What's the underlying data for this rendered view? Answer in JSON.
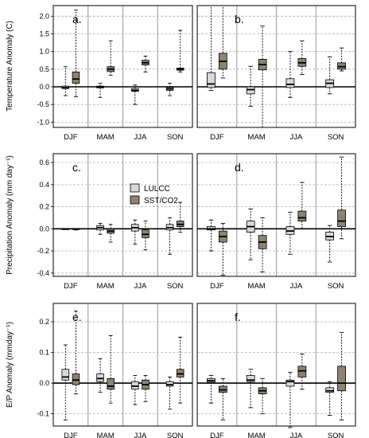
{
  "chart_data": {
    "type": "boxplot",
    "categories": [
      "DJF",
      "MAM",
      "JJA",
      "SON"
    ],
    "legend": [
      "LULCC",
      "SST/CO2"
    ],
    "colors": {
      "LULCC": "#d9d9d9",
      "SST/CO2": "#8c8373",
      "grid": "#b3b3b3",
      "sep": "#a6a6a6"
    },
    "rows": [
      {
        "ylabel": "Temperature Anomaly (C)",
        "ylim": [
          -1.15,
          2.3
        ],
        "ticks": [
          -1.0,
          -0.5,
          0.0,
          0.5,
          1.0,
          1.5,
          2.0
        ],
        "tick_labels": [
          "-1.0",
          "-0.5",
          "0.0",
          "0.5",
          "1.0",
          "1.5",
          "2.0"
        ]
      },
      {
        "ylabel": "Precipitation Anomaly (mm day⁻¹)",
        "ylim": [
          -0.43,
          0.68
        ],
        "ticks": [
          -0.4,
          -0.2,
          0.0,
          0.2,
          0.4,
          0.6
        ],
        "tick_labels": [
          "-0.4",
          "-0.2",
          "0.0",
          "0.2",
          "0.4",
          "0.6"
        ]
      },
      {
        "ylabel": "E/P Anomaly (mmday⁻¹)",
        "ylim": [
          -0.14,
          0.26
        ],
        "ticks": [
          -0.1,
          0.0,
          0.1,
          0.2
        ],
        "tick_labels": [
          "-0.1",
          "0.0",
          "0.1",
          "0.2"
        ]
      }
    ],
    "panels": [
      {
        "label": "a.",
        "row": 0,
        "col": 0,
        "series": [
          [
            [
              -0.25,
              -0.05,
              -0.02,
              0.02,
              0.57
            ],
            [
              -0.3,
              -0.03,
              -0.01,
              0.02,
              0.1
            ],
            [
              -0.5,
              -0.13,
              -0.1,
              -0.05,
              0.05
            ],
            [
              -0.25,
              -0.1,
              -0.06,
              -0.02,
              0.1
            ]
          ],
          [
            [
              -0.28,
              0.1,
              0.22,
              0.42,
              2.17
            ],
            [
              0.33,
              0.43,
              0.5,
              0.57,
              1.3
            ],
            [
              0.42,
              0.62,
              0.68,
              0.75,
              0.87
            ],
            [
              0.42,
              0.47,
              0.5,
              0.53,
              1.6
            ]
          ]
        ]
      },
      {
        "label": "b.",
        "row": 0,
        "col": 1,
        "series": [
          [
            [
              -0.1,
              -0.02,
              0.08,
              0.4,
              2.3
            ],
            [
              -0.55,
              -0.2,
              -0.08,
              0.0,
              0.58
            ],
            [
              -0.3,
              -0.02,
              0.07,
              0.23,
              1.0
            ],
            [
              -0.2,
              -0.02,
              0.1,
              0.2,
              0.85
            ]
          ],
          [
            [
              0.25,
              0.5,
              0.72,
              0.95,
              2.3
            ],
            [
              -1.15,
              0.48,
              0.63,
              0.78,
              1.72
            ],
            [
              0.35,
              0.58,
              0.68,
              0.8,
              1.3
            ],
            [
              0.45,
              0.5,
              0.57,
              0.68,
              1.1
            ]
          ]
        ]
      },
      {
        "label": "c.",
        "row": 1,
        "col": 0,
        "series": [
          [
            [
              0.0,
              0.0,
              0.0,
              0.0,
              0.0
            ],
            [
              -0.05,
              -0.01,
              0.01,
              0.03,
              0.05
            ],
            [
              -0.14,
              -0.02,
              0.01,
              0.04,
              0.08
            ],
            [
              -0.23,
              -0.01,
              0.01,
              0.04,
              0.1
            ]
          ],
          [
            [
              -0.01,
              -0.005,
              0.0,
              0.0,
              0.0
            ],
            [
              -0.12,
              -0.04,
              -0.02,
              0.0,
              0.04
            ],
            [
              -0.19,
              -0.08,
              -0.05,
              -0.01,
              0.07
            ],
            [
              -0.03,
              0.02,
              0.04,
              0.07,
              0.24
            ]
          ]
        ]
      },
      {
        "label": "d.",
        "row": 1,
        "col": 1,
        "series": [
          [
            [
              -0.2,
              -0.01,
              0.0,
              0.02,
              0.08
            ],
            [
              -0.28,
              -0.03,
              0.02,
              0.07,
              0.18
            ],
            [
              -0.23,
              -0.05,
              -0.02,
              0.02,
              0.15
            ],
            [
              -0.3,
              -0.1,
              -0.07,
              -0.03,
              0.03
            ]
          ],
          [
            [
              -0.42,
              -0.12,
              -0.07,
              -0.02,
              0.05
            ],
            [
              -0.39,
              -0.18,
              -0.12,
              -0.06,
              0.1
            ],
            [
              0.0,
              0.07,
              0.1,
              0.16,
              0.42
            ],
            [
              -0.09,
              0.02,
              0.07,
              0.17,
              0.65
            ]
          ]
        ]
      },
      {
        "label": "e.",
        "row": 2,
        "col": 0,
        "series": [
          [
            [
              -0.12,
              0.01,
              0.02,
              0.045,
              0.125
            ],
            [
              -0.03,
              0.005,
              0.015,
              0.03,
              0.08
            ],
            [
              -0.07,
              -0.02,
              -0.01,
              0.005,
              0.025
            ],
            [
              -0.085,
              -0.01,
              -0.005,
              0.005,
              0.02
            ]
          ],
          [
            [
              -0.035,
              -0.005,
              0.01,
              0.03,
              0.235
            ],
            [
              -0.065,
              -0.02,
              -0.01,
              0.015,
              0.155
            ],
            [
              -0.06,
              -0.02,
              -0.005,
              0.01,
              0.025
            ],
            [
              -0.065,
              0.02,
              0.03,
              0.045,
              0.15
            ]
          ]
        ]
      },
      {
        "label": "f.",
        "row": 2,
        "col": 1,
        "series": [
          [
            [
              -0.065,
              0.003,
              0.008,
              0.015,
              0.025
            ],
            [
              -0.08,
              0.005,
              0.01,
              0.025,
              0.045
            ],
            [
              -0.145,
              -0.01,
              0.005,
              0.01,
              0.035
            ],
            [
              -0.105,
              -0.03,
              -0.025,
              -0.015,
              0.005
            ]
          ],
          [
            [
              -0.12,
              -0.03,
              -0.022,
              -0.01,
              0.015
            ],
            [
              -0.1,
              -0.035,
              -0.025,
              -0.015,
              0.015
            ],
            [
              -0.02,
              0.02,
              0.04,
              0.055,
              0.095
            ],
            [
              -0.12,
              -0.025,
              0.0,
              0.055,
              0.165
            ]
          ]
        ]
      }
    ]
  }
}
